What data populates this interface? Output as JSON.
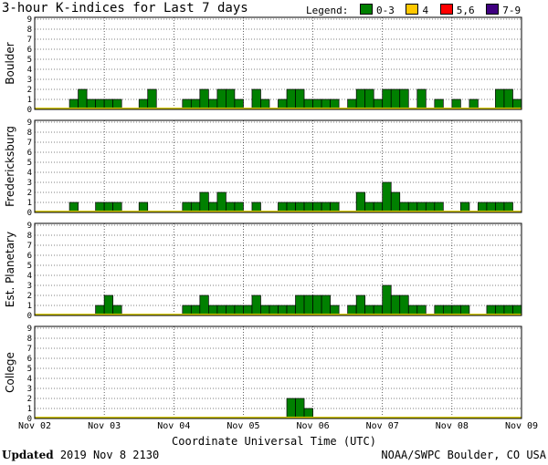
{
  "chart_data": {
    "type": "bar",
    "title": "3-hour K-indices for Last 7 days",
    "xlabel": "Coordinate Universal Time (UTC)",
    "x_tick_labels": [
      "Nov 02",
      "Nov 03",
      "Nov 04",
      "Nov 05",
      "Nov 06",
      "Nov 07",
      "Nov 08",
      "Nov 09"
    ],
    "y_ticks": [
      "0",
      "1",
      "2",
      "3",
      "4",
      "5",
      "6",
      "7",
      "8",
      "9"
    ],
    "ylim": [
      0,
      9
    ],
    "bins_per_day": 8,
    "grid": true,
    "legend": {
      "label": "Legend:",
      "position": "top-right",
      "items": [
        {
          "label": "0-3",
          "color": "#008000"
        },
        {
          "label": "4",
          "color": "#ffc800"
        },
        {
          "label": "5,6",
          "color": "#ff0000"
        },
        {
          "label": "7-9",
          "color": "#400080"
        }
      ]
    },
    "panels": [
      {
        "name": "Boulder",
        "values": [
          0,
          0,
          0,
          0,
          1,
          2,
          1,
          1,
          1,
          1,
          0,
          0,
          1,
          2,
          0,
          0,
          0,
          1,
          1,
          2,
          1,
          2,
          2,
          1,
          0,
          2,
          1,
          0,
          1,
          2,
          2,
          1,
          1,
          1,
          1,
          0,
          1,
          2,
          2,
          1,
          2,
          2,
          2,
          0,
          2,
          0,
          1,
          0,
          1,
          0,
          1,
          0,
          0,
          2,
          2,
          1,
          0
        ]
      },
      {
        "name": "Fredericksburg",
        "values": [
          0,
          0,
          0,
          0,
          1,
          0,
          0,
          1,
          1,
          1,
          0,
          0,
          1,
          0,
          0,
          0,
          0,
          1,
          1,
          2,
          1,
          2,
          1,
          1,
          0,
          1,
          0,
          0,
          1,
          1,
          1,
          1,
          1,
          1,
          1,
          0,
          0,
          2,
          1,
          1,
          3,
          2,
          1,
          1,
          1,
          1,
          1,
          0,
          0,
          1,
          0,
          1,
          1,
          1,
          1,
          0,
          0
        ]
      },
      {
        "name": "Est. Planetary",
        "values": [
          0,
          0,
          0,
          0,
          0,
          0,
          0,
          1,
          2,
          1,
          0,
          0,
          0,
          0,
          0,
          0,
          0,
          1,
          1,
          2,
          1,
          1,
          1,
          1,
          1,
          2,
          1,
          1,
          1,
          1,
          2,
          2,
          2,
          2,
          1,
          0,
          1,
          2,
          1,
          1,
          3,
          2,
          2,
          1,
          1,
          0,
          1,
          1,
          1,
          1,
          0,
          0,
          1,
          1,
          1,
          1,
          0
        ]
      },
      {
        "name": "College",
        "values": [
          0,
          0,
          0,
          0,
          0,
          0,
          0,
          0,
          0,
          0,
          0,
          0,
          0,
          0,
          0,
          0,
          0,
          0,
          0,
          0,
          0,
          0,
          0,
          0,
          0,
          0,
          0,
          0,
          0,
          2,
          2,
          1,
          0,
          0,
          0,
          0,
          0,
          0,
          0,
          0,
          0,
          0,
          0,
          0,
          0,
          0,
          0,
          0,
          0,
          0,
          0,
          0,
          0,
          0,
          0,
          0,
          0
        ]
      }
    ]
  },
  "footer": {
    "updated_label": "Updated",
    "updated_value": "2019 Nov  8 2130",
    "source": "NOAA/SWPC Boulder, CO USA"
  }
}
